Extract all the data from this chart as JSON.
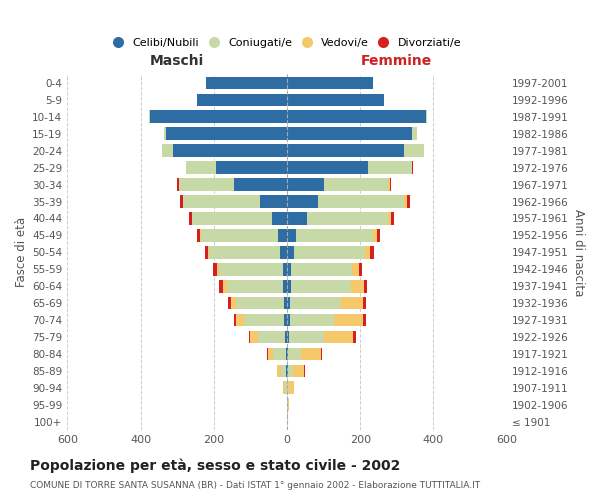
{
  "age_groups": [
    "100+",
    "95-99",
    "90-94",
    "85-89",
    "80-84",
    "75-79",
    "70-74",
    "65-69",
    "60-64",
    "55-59",
    "50-54",
    "45-49",
    "40-44",
    "35-39",
    "30-34",
    "25-29",
    "20-24",
    "15-19",
    "10-14",
    "5-9",
    "0-4"
  ],
  "birth_years": [
    "≤ 1901",
    "1902-1906",
    "1907-1911",
    "1912-1916",
    "1917-1921",
    "1922-1926",
    "1927-1931",
    "1932-1936",
    "1937-1941",
    "1942-1946",
    "1947-1951",
    "1952-1956",
    "1957-1961",
    "1962-1966",
    "1967-1971",
    "1972-1976",
    "1977-1981",
    "1982-1986",
    "1987-1991",
    "1992-1996",
    "1997-2001"
  ],
  "male_celibi": [
    0,
    0,
    0,
    2,
    3,
    5,
    8,
    8,
    10,
    12,
    18,
    25,
    40,
    75,
    145,
    195,
    310,
    330,
    375,
    245,
    220
  ],
  "male_coniugati": [
    0,
    1,
    5,
    15,
    35,
    75,
    110,
    130,
    155,
    175,
    195,
    210,
    220,
    210,
    150,
    80,
    30,
    5,
    2,
    0,
    0
  ],
  "male_vedovi": [
    0,
    0,
    5,
    10,
    15,
    20,
    20,
    15,
    10,
    5,
    3,
    2,
    0,
    0,
    0,
    0,
    0,
    0,
    0,
    0,
    0
  ],
  "male_divorziati": [
    0,
    0,
    0,
    0,
    2,
    5,
    8,
    8,
    10,
    10,
    8,
    8,
    8,
    8,
    5,
    2,
    0,
    0,
    0,
    0,
    0
  ],
  "female_celibi": [
    0,
    0,
    0,
    2,
    3,
    5,
    8,
    8,
    10,
    12,
    18,
    25,
    55,
    85,
    100,
    220,
    320,
    340,
    380,
    265,
    235
  ],
  "female_coniugati": [
    0,
    1,
    5,
    15,
    35,
    95,
    120,
    140,
    165,
    165,
    195,
    210,
    220,
    235,
    175,
    120,
    55,
    15,
    2,
    0,
    0
  ],
  "female_vedovi": [
    0,
    5,
    15,
    30,
    55,
    80,
    80,
    60,
    35,
    20,
    15,
    10,
    8,
    8,
    5,
    2,
    0,
    0,
    0,
    0,
    0
  ],
  "female_divorziati": [
    0,
    0,
    0,
    2,
    2,
    8,
    8,
    8,
    8,
    8,
    10,
    8,
    8,
    8,
    5,
    2,
    0,
    0,
    0,
    0,
    0
  ],
  "colors": {
    "celibi": "#2E6DA4",
    "coniugati": "#C8D9A8",
    "vedovi": "#F5C96A",
    "divorziati": "#D42020"
  },
  "title": "Popolazione per età, sesso e stato civile - 2002",
  "subtitle": "COMUNE DI TORRE SANTA SUSANNA (BR) - Dati ISTAT 1° gennaio 2002 - Elaborazione TUTTITALIA.IT",
  "xlabel_left": "Maschi",
  "xlabel_right": "Femmine",
  "ylabel_left": "Fasce di età",
  "ylabel_right": "Anni di nascita",
  "xlim": 600,
  "legend_labels": [
    "Celibi/Nubili",
    "Coniugati/e",
    "Vedovi/e",
    "Divorziati/e"
  ],
  "background_color": "#ffffff",
  "grid_color": "#cccccc"
}
